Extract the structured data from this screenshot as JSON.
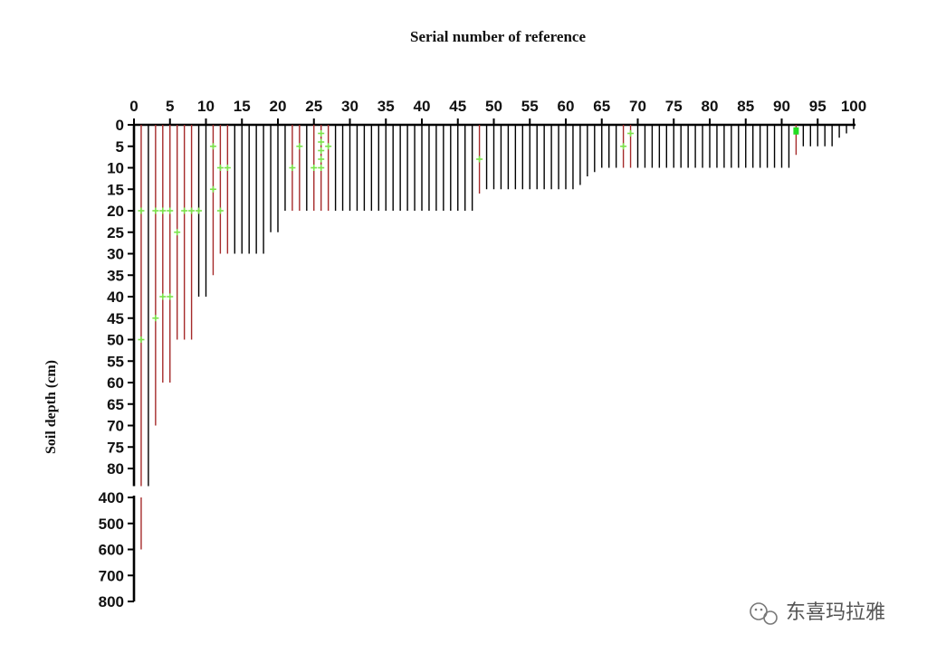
{
  "chart_data": {
    "type": "bar",
    "orientation": "downward-vertical-lines",
    "title": "Serial  number of reference",
    "xlabel": "Serial  number of reference",
    "ylabel": "Soil depth (cm)",
    "x_ticks": [
      "0",
      "5",
      "10",
      "15",
      "20",
      "25",
      "30",
      "35",
      "40",
      "45",
      "50",
      "55",
      "60",
      "65",
      "70",
      "75",
      "80",
      "85",
      "90",
      "95",
      "100"
    ],
    "y_ticks_upper": [
      "0",
      "5",
      "10",
      "15",
      "20",
      "25",
      "30",
      "35",
      "40",
      "45",
      "50",
      "55",
      "60",
      "65",
      "70",
      "75",
      "80"
    ],
    "y_ticks_lower": [
      "400",
      "500",
      "600",
      "700",
      "800"
    ],
    "xlim": [
      0,
      100
    ],
    "ylim_upper": [
      0,
      82
    ],
    "ylim_lower": [
      400,
      800
    ],
    "series_colors": {
      "black": "#000000",
      "red": "#a52a2a",
      "marker": "#7be34a",
      "marker_highlight": "#22dd22"
    },
    "bars": [
      {
        "x": 1,
        "depth": 82,
        "color": "red"
      },
      {
        "x": 2,
        "depth": 82,
        "color": "black"
      },
      {
        "x": 3,
        "depth": 70,
        "color": "red"
      },
      {
        "x": 4,
        "depth": 60,
        "color": "red"
      },
      {
        "x": 5,
        "depth": 60,
        "color": "red"
      },
      {
        "x": 6,
        "depth": 50,
        "color": "red"
      },
      {
        "x": 7,
        "depth": 50,
        "color": "red"
      },
      {
        "x": 8,
        "depth": 50,
        "color": "red"
      },
      {
        "x": 9,
        "depth": 40,
        "color": "black"
      },
      {
        "x": 10,
        "depth": 40,
        "color": "black"
      },
      {
        "x": 11,
        "depth": 35,
        "color": "red"
      },
      {
        "x": 12,
        "depth": 30,
        "color": "red"
      },
      {
        "x": 13,
        "depth": 30,
        "color": "red"
      },
      {
        "x": 14,
        "depth": 30,
        "color": "black"
      },
      {
        "x": 15,
        "depth": 30,
        "color": "black"
      },
      {
        "x": 16,
        "depth": 30,
        "color": "black"
      },
      {
        "x": 17,
        "depth": 30,
        "color": "black"
      },
      {
        "x": 18,
        "depth": 30,
        "color": "black"
      },
      {
        "x": 19,
        "depth": 25,
        "color": "black"
      },
      {
        "x": 20,
        "depth": 25,
        "color": "black"
      },
      {
        "x": 21,
        "depth": 20,
        "color": "black"
      },
      {
        "x": 22,
        "depth": 20,
        "color": "red"
      },
      {
        "x": 23,
        "depth": 20,
        "color": "red"
      },
      {
        "x": 24,
        "depth": 20,
        "color": "black"
      },
      {
        "x": 25,
        "depth": 20,
        "color": "red"
      },
      {
        "x": 26,
        "depth": 20,
        "color": "red"
      },
      {
        "x": 27,
        "depth": 20,
        "color": "red"
      },
      {
        "x": 28,
        "depth": 20,
        "color": "black"
      },
      {
        "x": 29,
        "depth": 20,
        "color": "black"
      },
      {
        "x": 30,
        "depth": 20,
        "color": "black"
      },
      {
        "x": 31,
        "depth": 20,
        "color": "black"
      },
      {
        "x": 32,
        "depth": 20,
        "color": "black"
      },
      {
        "x": 33,
        "depth": 20,
        "color": "black"
      },
      {
        "x": 34,
        "depth": 20,
        "color": "black"
      },
      {
        "x": 35,
        "depth": 20,
        "color": "black"
      },
      {
        "x": 36,
        "depth": 20,
        "color": "black"
      },
      {
        "x": 37,
        "depth": 20,
        "color": "black"
      },
      {
        "x": 38,
        "depth": 20,
        "color": "black"
      },
      {
        "x": 39,
        "depth": 20,
        "color": "black"
      },
      {
        "x": 40,
        "depth": 20,
        "color": "black"
      },
      {
        "x": 41,
        "depth": 20,
        "color": "black"
      },
      {
        "x": 42,
        "depth": 20,
        "color": "black"
      },
      {
        "x": 43,
        "depth": 20,
        "color": "black"
      },
      {
        "x": 44,
        "depth": 20,
        "color": "black"
      },
      {
        "x": 45,
        "depth": 20,
        "color": "black"
      },
      {
        "x": 46,
        "depth": 20,
        "color": "black"
      },
      {
        "x": 47,
        "depth": 20,
        "color": "black"
      },
      {
        "x": 48,
        "depth": 16,
        "color": "red"
      },
      {
        "x": 49,
        "depth": 15,
        "color": "black"
      },
      {
        "x": 50,
        "depth": 15,
        "color": "black"
      },
      {
        "x": 51,
        "depth": 15,
        "color": "black"
      },
      {
        "x": 52,
        "depth": 15,
        "color": "black"
      },
      {
        "x": 53,
        "depth": 15,
        "color": "black"
      },
      {
        "x": 54,
        "depth": 15,
        "color": "black"
      },
      {
        "x": 55,
        "depth": 15,
        "color": "black"
      },
      {
        "x": 56,
        "depth": 15,
        "color": "black"
      },
      {
        "x": 57,
        "depth": 15,
        "color": "black"
      },
      {
        "x": 58,
        "depth": 15,
        "color": "black"
      },
      {
        "x": 59,
        "depth": 15,
        "color": "black"
      },
      {
        "x": 60,
        "depth": 15,
        "color": "black"
      },
      {
        "x": 61,
        "depth": 15,
        "color": "black"
      },
      {
        "x": 62,
        "depth": 14,
        "color": "black"
      },
      {
        "x": 63,
        "depth": 12,
        "color": "black"
      },
      {
        "x": 64,
        "depth": 11,
        "color": "black"
      },
      {
        "x": 65,
        "depth": 10,
        "color": "black"
      },
      {
        "x": 66,
        "depth": 10,
        "color": "black"
      },
      {
        "x": 67,
        "depth": 10,
        "color": "black"
      },
      {
        "x": 68,
        "depth": 10,
        "color": "red"
      },
      {
        "x": 69,
        "depth": 10,
        "color": "red"
      },
      {
        "x": 70,
        "depth": 10,
        "color": "black"
      },
      {
        "x": 71,
        "depth": 10,
        "color": "black"
      },
      {
        "x": 72,
        "depth": 10,
        "color": "black"
      },
      {
        "x": 73,
        "depth": 10,
        "color": "black"
      },
      {
        "x": 74,
        "depth": 10,
        "color": "black"
      },
      {
        "x": 75,
        "depth": 10,
        "color": "black"
      },
      {
        "x": 76,
        "depth": 10,
        "color": "black"
      },
      {
        "x": 77,
        "depth": 10,
        "color": "black"
      },
      {
        "x": 78,
        "depth": 10,
        "color": "black"
      },
      {
        "x": 79,
        "depth": 10,
        "color": "black"
      },
      {
        "x": 80,
        "depth": 10,
        "color": "black"
      },
      {
        "x": 81,
        "depth": 10,
        "color": "black"
      },
      {
        "x": 82,
        "depth": 10,
        "color": "black"
      },
      {
        "x": 83,
        "depth": 10,
        "color": "black"
      },
      {
        "x": 84,
        "depth": 10,
        "color": "black"
      },
      {
        "x": 85,
        "depth": 10,
        "color": "black"
      },
      {
        "x": 86,
        "depth": 10,
        "color": "black"
      },
      {
        "x": 87,
        "depth": 10,
        "color": "black"
      },
      {
        "x": 88,
        "depth": 10,
        "color": "black"
      },
      {
        "x": 89,
        "depth": 10,
        "color": "black"
      },
      {
        "x": 90,
        "depth": 10,
        "color": "black"
      },
      {
        "x": 91,
        "depth": 10,
        "color": "black"
      },
      {
        "x": 92,
        "depth": 7,
        "color": "red"
      },
      {
        "x": 93,
        "depth": 5,
        "color": "black"
      },
      {
        "x": 94,
        "depth": 5,
        "color": "black"
      },
      {
        "x": 95,
        "depth": 5,
        "color": "black"
      },
      {
        "x": 96,
        "depth": 5,
        "color": "black"
      },
      {
        "x": 97,
        "depth": 5,
        "color": "black"
      },
      {
        "x": 98,
        "depth": 3,
        "color": "black"
      },
      {
        "x": 99,
        "depth": 2,
        "color": "black"
      },
      {
        "x": 100,
        "depth": 1,
        "color": "black"
      }
    ],
    "lower_bars": [
      {
        "x": 1,
        "from": 400,
        "to": 600,
        "color": "red"
      }
    ],
    "markers": [
      {
        "x": 1,
        "depth": 20
      },
      {
        "x": 1,
        "depth": 50
      },
      {
        "x": 3,
        "depth": 20
      },
      {
        "x": 3,
        "depth": 45
      },
      {
        "x": 4,
        "depth": 20
      },
      {
        "x": 4,
        "depth": 40
      },
      {
        "x": 5,
        "depth": 20
      },
      {
        "x": 5,
        "depth": 40
      },
      {
        "x": 6,
        "depth": 25
      },
      {
        "x": 7,
        "depth": 20
      },
      {
        "x": 8,
        "depth": 20
      },
      {
        "x": 9,
        "depth": 20
      },
      {
        "x": 11,
        "depth": 5
      },
      {
        "x": 11,
        "depth": 15
      },
      {
        "x": 12,
        "depth": 10
      },
      {
        "x": 12,
        "depth": 20
      },
      {
        "x": 13,
        "depth": 10
      },
      {
        "x": 22,
        "depth": 10
      },
      {
        "x": 23,
        "depth": 5
      },
      {
        "x": 25,
        "depth": 10
      },
      {
        "x": 26,
        "depth": 2
      },
      {
        "x": 26,
        "depth": 4
      },
      {
        "x": 26,
        "depth": 6
      },
      {
        "x": 26,
        "depth": 8
      },
      {
        "x": 26,
        "depth": 10
      },
      {
        "x": 27,
        "depth": 5
      },
      {
        "x": 48,
        "depth": 8
      },
      {
        "x": 68,
        "depth": 5
      },
      {
        "x": 69,
        "depth": 2
      }
    ],
    "highlight_markers": [
      {
        "x": 92,
        "depth": 1
      }
    ]
  },
  "watermark": {
    "text": "东喜玛拉雅",
    "icon": "wechat-icon"
  }
}
